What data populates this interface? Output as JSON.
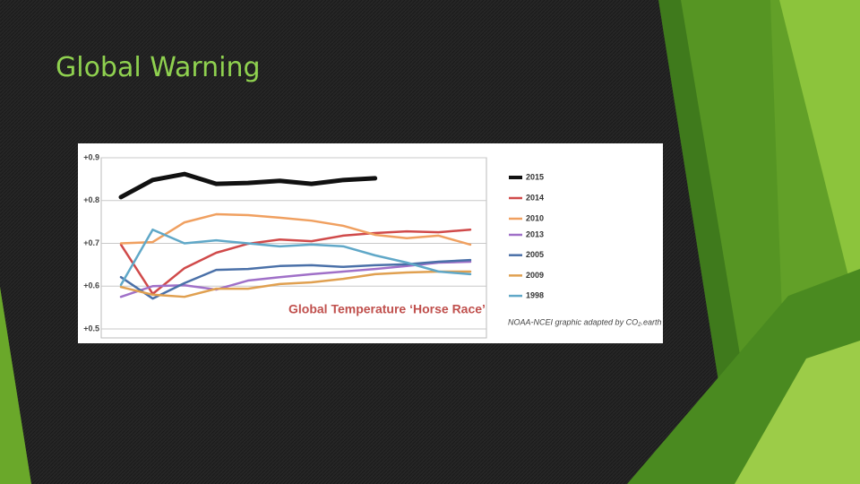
{
  "slide_title": "Global Warning",
  "chart_data": {
    "type": "line",
    "title": "Global Temperature ‘Horse Race’",
    "annotation": "NOAA-NCEI graphic adapted by CO₂.earth",
    "categories": [
      null,
      null,
      null,
      null,
      null,
      null,
      null,
      null,
      null,
      null,
      null,
      null
    ],
    "ylim": [
      0.5,
      0.9
    ],
    "yticks": [
      {
        "value": 0.9,
        "label": "+0.9"
      },
      {
        "value": 0.8,
        "label": "+0.8"
      },
      {
        "value": 0.7,
        "label": "+0.7"
      },
      {
        "value": 0.6,
        "label": "+0.6"
      },
      {
        "value": 0.5,
        "label": "+0.5"
      }
    ],
    "grid": true,
    "legend": "right",
    "series": [
      {
        "name": "2015",
        "color": "#111111",
        "values": [
          0.808,
          0.848,
          0.862,
          0.839,
          0.841,
          0.846,
          0.839,
          0.848,
          0.852,
          null,
          null,
          null
        ]
      },
      {
        "name": "2014",
        "color": "#d04a4a",
        "values": [
          0.697,
          0.582,
          0.642,
          0.678,
          0.699,
          0.709,
          0.705,
          0.718,
          0.724,
          0.728,
          0.726,
          0.732
        ]
      },
      {
        "name": "2010",
        "color": "#f0a060",
        "values": [
          0.7,
          0.703,
          0.749,
          0.768,
          0.766,
          0.76,
          0.753,
          0.741,
          0.72,
          0.712,
          0.718,
          0.697
        ]
      },
      {
        "name": "2013",
        "color": "#a070c8",
        "values": [
          0.575,
          0.6,
          0.602,
          0.592,
          0.613,
          0.621,
          0.628,
          0.634,
          0.64,
          0.647,
          0.655,
          0.657
        ]
      },
      {
        "name": "2005",
        "color": "#4a70a8",
        "values": [
          0.621,
          0.571,
          0.607,
          0.638,
          0.64,
          0.647,
          0.649,
          0.645,
          0.649,
          0.651,
          0.657,
          0.661
        ]
      },
      {
        "name": "2009",
        "color": "#e0a050",
        "values": [
          0.598,
          0.58,
          0.575,
          0.594,
          0.594,
          0.605,
          0.609,
          0.617,
          0.628,
          0.632,
          0.634,
          0.634
        ]
      },
      {
        "name": "1998",
        "color": "#60a8c8",
        "values": [
          0.603,
          0.732,
          0.7,
          0.707,
          0.7,
          0.693,
          0.697,
          0.693,
          0.672,
          0.655,
          0.634,
          0.628
        ]
      }
    ]
  }
}
